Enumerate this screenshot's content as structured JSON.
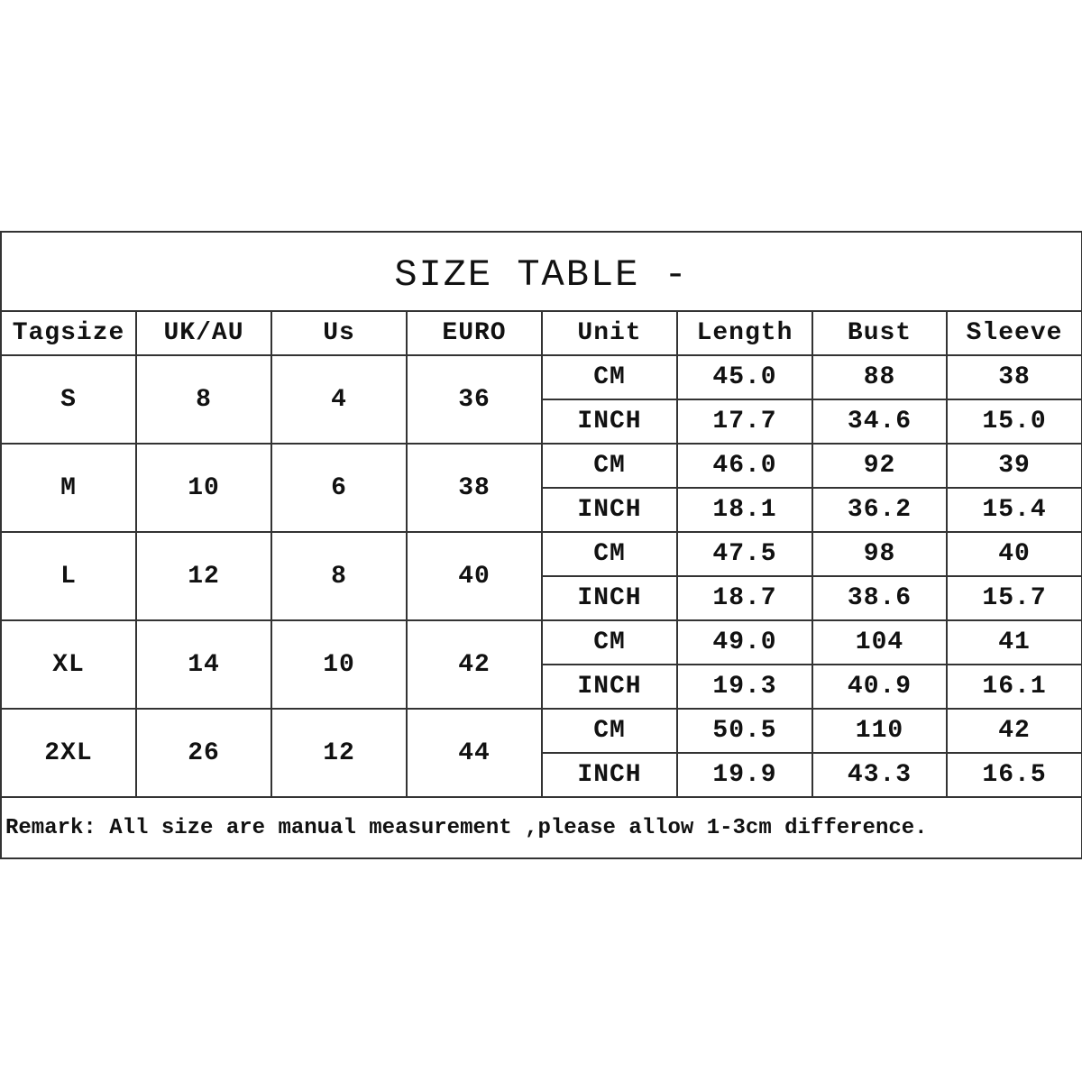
{
  "title": "SIZE TABLE -",
  "headers": [
    "Tagsize",
    "UK/AU",
    "Us",
    "EURO",
    "Unit",
    "Length",
    "Bust",
    "Sleeve"
  ],
  "rows": [
    {
      "tagsize": "S",
      "ukau": "8",
      "us": "4",
      "euro": "36",
      "cm": {
        "unit": "CM",
        "length": "45.0",
        "bust": "88",
        "sleeve": "38"
      },
      "inch": {
        "unit": "INCH",
        "length": "17.7",
        "bust": "34.6",
        "sleeve": "15.0"
      }
    },
    {
      "tagsize": "M",
      "ukau": "10",
      "us": "6",
      "euro": "38",
      "cm": {
        "unit": "CM",
        "length": "46.0",
        "bust": "92",
        "sleeve": "39"
      },
      "inch": {
        "unit": "INCH",
        "length": "18.1",
        "bust": "36.2",
        "sleeve": "15.4"
      }
    },
    {
      "tagsize": "L",
      "ukau": "12",
      "us": "8",
      "euro": "40",
      "cm": {
        "unit": "CM",
        "length": "47.5",
        "bust": "98",
        "sleeve": "40"
      },
      "inch": {
        "unit": "INCH",
        "length": "18.7",
        "bust": "38.6",
        "sleeve": "15.7"
      }
    },
    {
      "tagsize": "XL",
      "ukau": "14",
      "us": "10",
      "euro": "42",
      "cm": {
        "unit": "CM",
        "length": "49.0",
        "bust": "104",
        "sleeve": "41"
      },
      "inch": {
        "unit": "INCH",
        "length": "19.3",
        "bust": "40.9",
        "sleeve": "16.1"
      }
    },
    {
      "tagsize": "2XL",
      "ukau": "26",
      "us": "12",
      "euro": "44",
      "cm": {
        "unit": "CM",
        "length": "50.5",
        "bust": "110",
        "sleeve": "42"
      },
      "inch": {
        "unit": "INCH",
        "length": "19.9",
        "bust": "43.3",
        "sleeve": "16.5"
      }
    }
  ],
  "remark": "Remark: All size are manual measurement ,please allow 1-3cm difference."
}
